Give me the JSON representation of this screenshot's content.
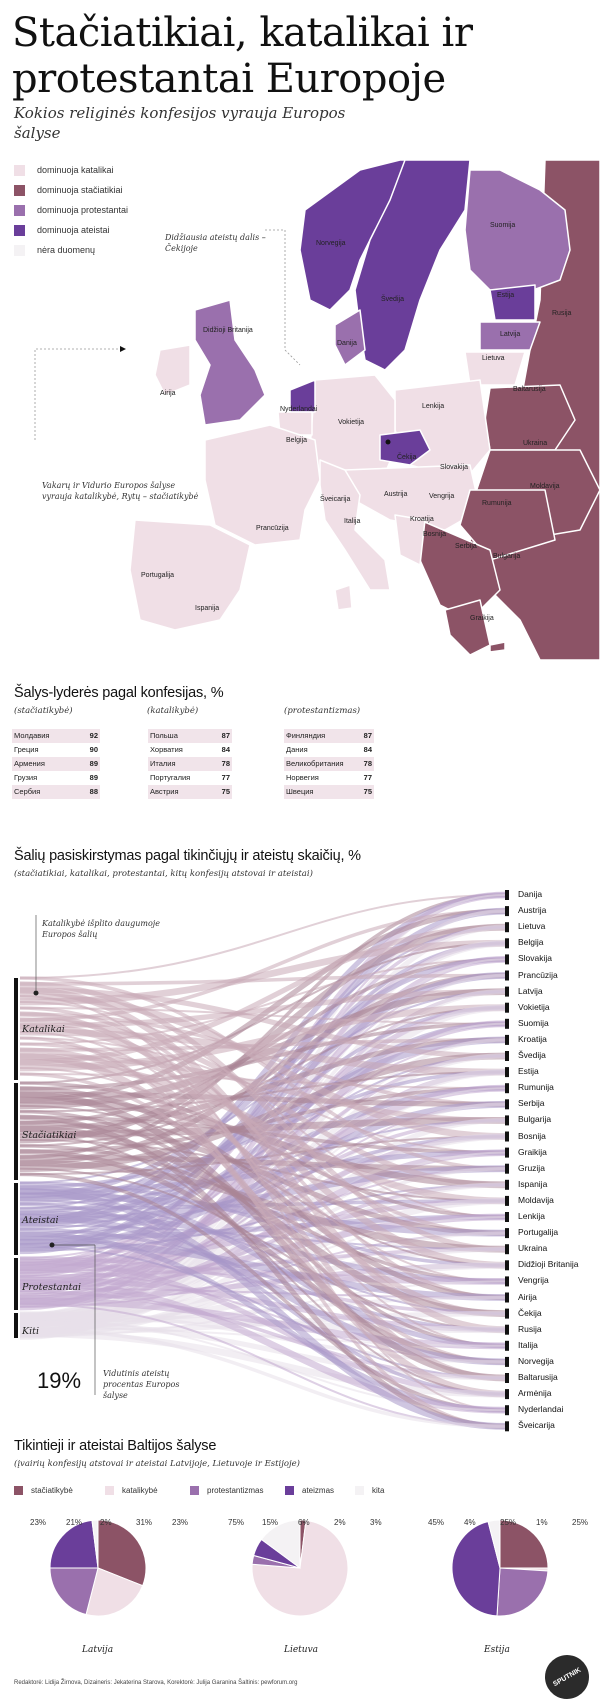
{
  "header": {
    "title": "Stačiatikiai, katalikai ir protestantai Europoje",
    "subtitle": "Kokios religinės konfesijos vyrauja Europos šalyse"
  },
  "colors": {
    "catholic": "#f0dfe6",
    "orthodox": "#8c5366",
    "protestant": "#9a70ad",
    "atheist": "#6a3e9a",
    "nodata": "#f4f2f4",
    "other": "#f4f2f4"
  },
  "map": {
    "legend": [
      {
        "label": "dominuoja katalikai",
        "color": "#f0dfe6"
      },
      {
        "label": "dominuoja stačiatikiai",
        "color": "#8c5366"
      },
      {
        "label": "dominuoja protestantai",
        "color": "#9a70ad"
      },
      {
        "label": "dominuoja ateistai",
        "color": "#6a3e9a"
      },
      {
        "label": "nėra duomenų",
        "color": "#f4f2f4"
      }
    ],
    "country_labels": {
      "norvegija": "Norvegija",
      "svedija": "Švedija",
      "suomija": "Suomija",
      "estija": "Estija",
      "rusija": "Rusija",
      "latvija": "Latvija",
      "lietuva": "Lietuva",
      "danija": "Danija",
      "britanija": "Didžioji Britanija",
      "airija": "Airija",
      "nyderlandai": "Nyderlandai",
      "belgija": "Belgija",
      "vokietija": "Vokietija",
      "lenkija": "Lenkija",
      "baltarusija": "Baltarusija",
      "ukraina": "Ukraina",
      "cekija": "Čekija",
      "slovakija": "Slovakija",
      "sveicarija": "Šveicarija",
      "austrija": "Austrija",
      "vengrija": "Vengrija",
      "rumunija": "Rumunija",
      "moldavija": "Moldavija",
      "prancuzija": "Prancūzija",
      "italija": "Italija",
      "kroatija": "Kroatija",
      "bosnija": "Bosnija",
      "serbija": "Serbija",
      "bulgarija": "Bulgarija",
      "portugalija": "Portugalija",
      "ispanija": "Ispanija",
      "graikija": "Graikija"
    },
    "annotation_czech": "Didžiausia ateistų dalis – Čekijoje",
    "annotation_west": "Vakarų ir Vidurio Europos šalyse vyrauja katalikybė, Rytų – stačiatikybė"
  },
  "leaders": {
    "title": "Šalys-lyderės pagal konfesijas, %",
    "columns": [
      {
        "header": "(stačiatikybė)",
        "rows": [
          [
            "Молдавия",
            "92"
          ],
          [
            "Греция",
            "90"
          ],
          [
            "Армения",
            "89"
          ],
          [
            "Грузия",
            "89"
          ],
          [
            "Сербия",
            "88"
          ]
        ]
      },
      {
        "header": "(katalikybė)",
        "rows": [
          [
            "Польша",
            "87"
          ],
          [
            "Хорватия",
            "84"
          ],
          [
            "Италия",
            "78"
          ],
          [
            "Португалия",
            "77"
          ],
          [
            "Австрия",
            "75"
          ]
        ]
      },
      {
        "header": "(protestantizmas)",
        "rows": [
          [
            "Финляндия",
            "87"
          ],
          [
            "Дания",
            "84"
          ],
          [
            "Великобритания",
            "78"
          ],
          [
            "Норвегия",
            "77"
          ],
          [
            "Швеция",
            "75"
          ]
        ]
      }
    ]
  },
  "alluvial": {
    "title": "Šalių pasiskirstymas pagal tikinčiųjų ir ateistų skaičių, %",
    "subtitle": "(stačiatikiai, katalikai, protestantai, kitų konfesijų atstovai ir ateistai)",
    "categories": [
      "Katalikai",
      "Stačiatikiai",
      "Ateistai",
      "Protestantai",
      "Kiti"
    ],
    "countries": [
      "Danija",
      "Austrija",
      "Lietuva",
      "Belgija",
      "Slovakija",
      "Prancūzija",
      "Latvija",
      "Vokietija",
      "Suomija",
      "Kroatija",
      "Švedija",
      "Estija",
      "Rumunija",
      "Serbija",
      "Bulgarija",
      "Bosnija",
      "Graikija",
      "Gruzija",
      "Ispanija",
      "Moldavija",
      "Lenkija",
      "Portugalija",
      "Ukraina",
      "Didžioji Britanija",
      "Vengrija",
      "Airija",
      "Čekija",
      "Rusija",
      "Italija",
      "Norvegija",
      "Baltarusija",
      "Armėnija",
      "Nyderlandai",
      "Šveicarija"
    ],
    "annotation_top": "Katalikybė išplito daugumoje Europos šalių",
    "avg_value": "19%",
    "avg_label": "Vidutinis ateistų procentas Europos šalyse"
  },
  "baltic": {
    "title": "Tikintieji ir ateistai Baltijos šalyse",
    "subtitle": "(įvairių konfesijų atstovai ir ateistai Latvijoje, Lietuvoje ir Estijoje)",
    "legend": [
      "stačiatikybė",
      "katalikybė",
      "protestantizmas",
      "ateizmas",
      "kita"
    ]
  },
  "chart_data": {
    "type": "pie",
    "categories": [
      "stačiatikybė",
      "katalikybė",
      "protestantizmas",
      "ateizmas",
      "kita"
    ],
    "series": [
      {
        "name": "Latvija",
        "values": [
          31,
          23,
          21,
          23,
          2
        ],
        "labels": [
          "23%",
          "21%",
          "2%",
          "31%",
          "23%"
        ]
      },
      {
        "name": "Lietuva",
        "values": [
          2,
          75,
          3,
          6,
          15
        ],
        "labels": [
          "75%",
          "15%",
          "6%",
          "2%",
          "3%"
        ]
      },
      {
        "name": "Estija",
        "values": [
          25,
          1,
          25,
          45,
          4
        ],
        "labels": [
          "45%",
          "4%",
          "25%",
          "1%",
          "25%"
        ]
      }
    ]
  },
  "footer": {
    "credits": "Redaktorė: Lidija Žirnova, Dizaineris: Jekaterina Starova, Korektorė: Julija Garanina Šaltinis: pewforum.org",
    "logo": "SPUTNIK"
  }
}
